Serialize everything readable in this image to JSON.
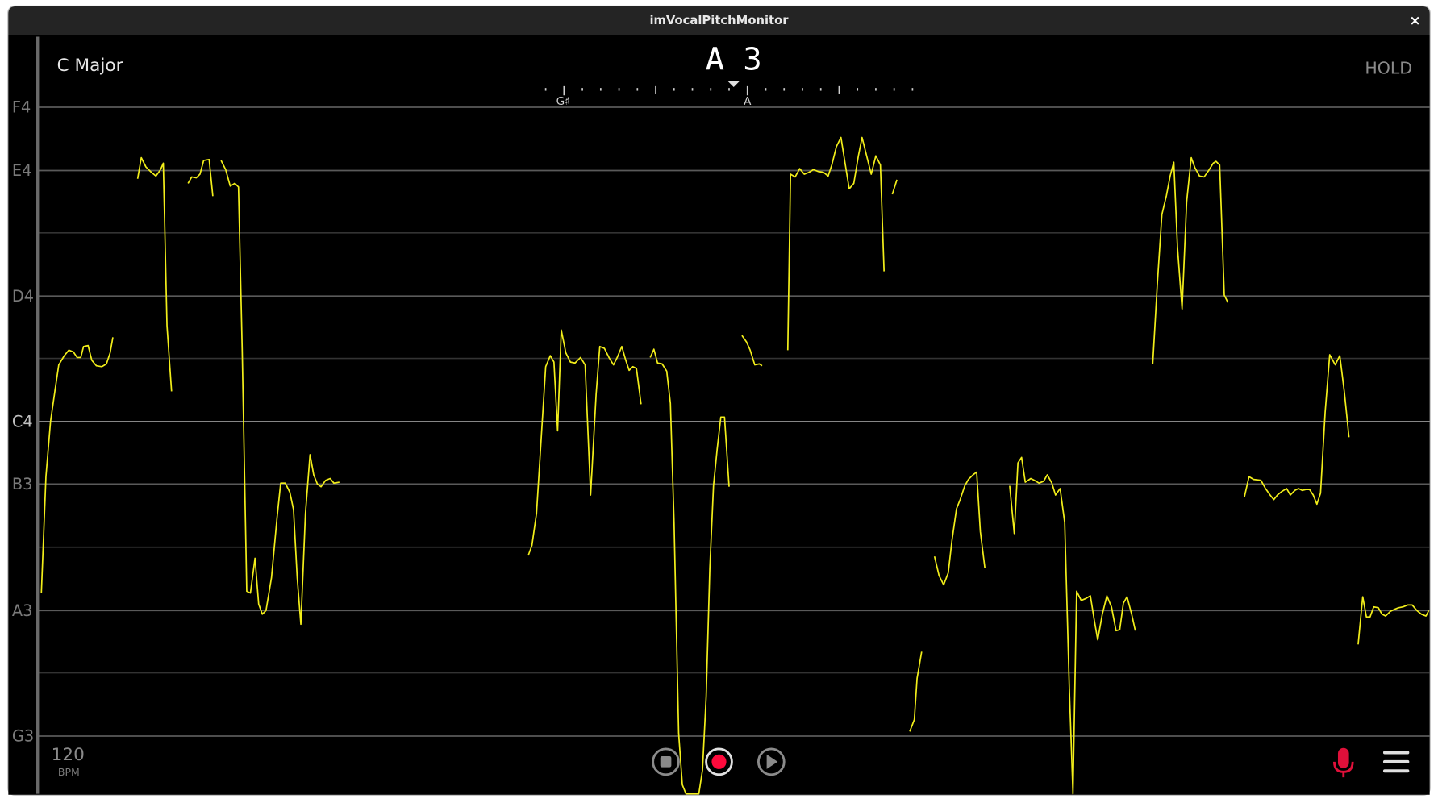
{
  "window": {
    "title": "imVocalPitchMonitor",
    "close": "×"
  },
  "header": {
    "key": "C Major",
    "note": "A 3",
    "hold": "HOLD"
  },
  "tuner": {
    "labels": [
      "G♯",
      "A"
    ]
  },
  "pitch_labels": [
    "F4",
    "E4",
    "D4",
    "C4",
    "B3",
    "A3",
    "G3"
  ],
  "footer": {
    "bpm": 120,
    "bpm_unit": "BPM"
  }
}
